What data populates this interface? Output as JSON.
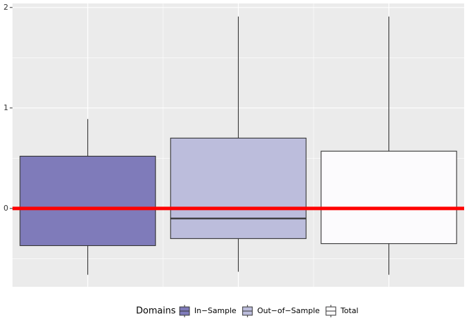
{
  "chart_data": {
    "type": "box",
    "legend_title": "Domains",
    "categories": [
      "In−Sample",
      "Out−of−Sample",
      "Total"
    ],
    "colors": [
      "#7f7bba",
      "#bcbddc",
      "#fcfbfd"
    ],
    "boxes": [
      {
        "min": -0.66,
        "q1": -0.37,
        "median": 0.0,
        "q3": 0.52,
        "max": 0.89
      },
      {
        "min": -0.63,
        "q1": -0.3,
        "median": -0.1,
        "q3": 0.7,
        "max": 1.91
      },
      {
        "min": -0.66,
        "q1": -0.35,
        "median": 0.0,
        "q3": 0.57,
        "max": 1.91
      }
    ],
    "ylim": [
      -0.78,
      2.04
    ],
    "yticks": [
      0,
      1,
      2
    ],
    "grid": true,
    "hline": {
      "value": 0,
      "color": "#ff0000"
    }
  }
}
